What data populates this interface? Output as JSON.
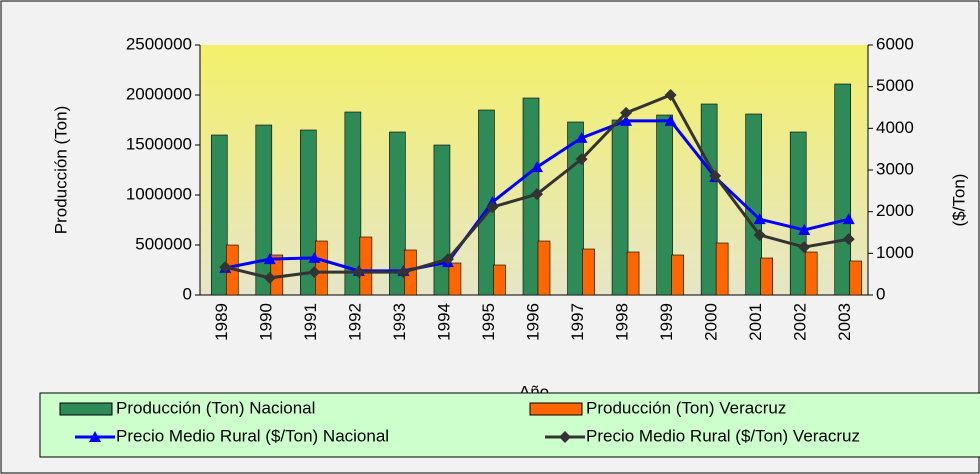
{
  "chart_data": {
    "type": "bar",
    "x_label": "Año",
    "y_label": "Producción (Ton)",
    "y2_label": "($/Ton)",
    "categories": [
      "1989",
      "1990",
      "1991",
      "1992",
      "1993",
      "1994",
      "1995",
      "1996",
      "1997",
      "1998",
      "1999",
      "2000",
      "2001",
      "2002",
      "2003"
    ],
    "series": [
      {
        "name": "Producción (Ton) Nacional",
        "type": "bar",
        "color": "#2e8b57",
        "values": [
          1600000,
          1700000,
          1650000,
          1830000,
          1630000,
          1500000,
          1850000,
          1970000,
          1730000,
          1750000,
          1800000,
          1910000,
          1810000,
          1630000,
          2110000
        ]
      },
      {
        "name": "Producción (Ton) Veracruz",
        "type": "bar",
        "color": "#ff6600",
        "values": [
          500000,
          400000,
          540000,
          580000,
          450000,
          320000,
          300000,
          540000,
          460000,
          430000,
          400000,
          520000,
          370000,
          430000,
          340000
        ]
      },
      {
        "name": "Precio Medio Rural ($/Ton) Nacional",
        "type": "line",
        "axis": "y2",
        "color": "#0000ff",
        "values": [
          650,
          860,
          890,
          580,
          580,
          790,
          2230,
          3070,
          3770,
          4180,
          4180,
          2830,
          1820,
          1560,
          1820
        ]
      },
      {
        "name": "Precio Medio Rural ($/Ton) Veracruz",
        "type": "line",
        "axis": "y2",
        "color": "#333333",
        "values": [
          670,
          410,
          550,
          550,
          550,
          860,
          2110,
          2420,
          3260,
          4370,
          4800,
          2860,
          1440,
          1150,
          1340
        ]
      }
    ],
    "ylim": [
      0,
      2500000
    ],
    "yticks": [
      0,
      500000,
      1000000,
      1500000,
      2000000,
      2500000
    ],
    "y2lim": [
      0,
      6000
    ],
    "y2ticks": [
      0,
      1000,
      2000,
      3000,
      4000,
      5000,
      6000
    ]
  }
}
